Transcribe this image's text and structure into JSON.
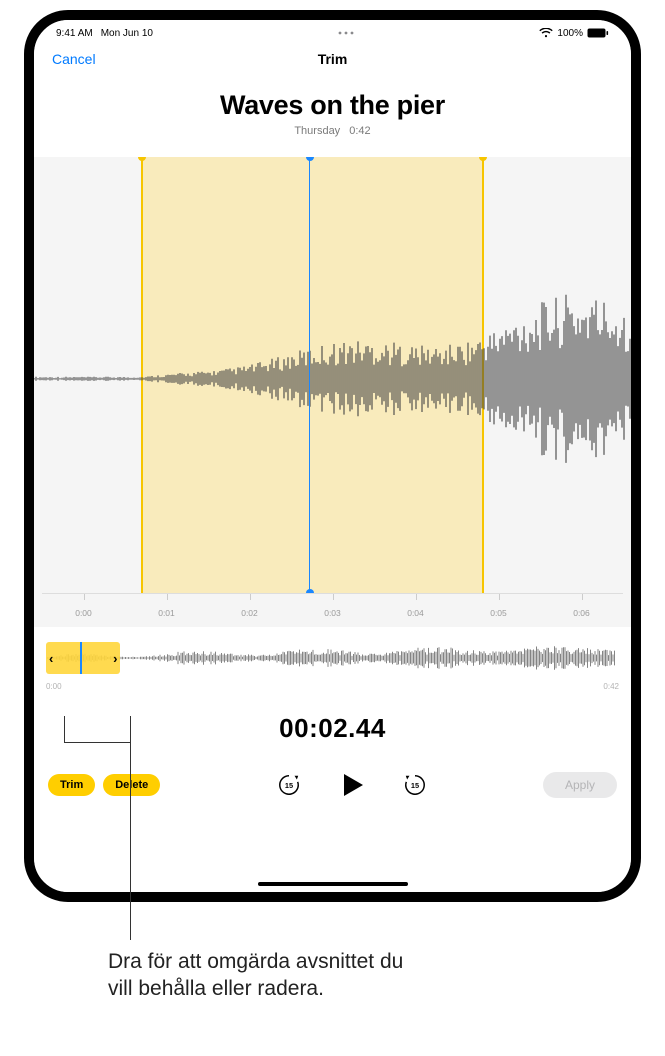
{
  "status": {
    "time": "9:41 AM",
    "date": "Mon Jun 10",
    "battery": "100%"
  },
  "nav": {
    "cancel": "Cancel",
    "title": "Trim"
  },
  "recording": {
    "title": "Waves on the pier",
    "day": "Thursday",
    "duration": "0:42"
  },
  "waveform": {
    "background": "#f5f5f5",
    "wave_color": "#444444",
    "selection_color": "rgba(255,225,120,0.45)",
    "handle_color": "#f7c500",
    "playhead_color": "#1a87ff",
    "selection_start_pct": 18,
    "selection_end_pct": 75,
    "playhead_pct": 46,
    "ticks": [
      "0:00",
      "0:01",
      "0:02",
      "0:03",
      "0:04",
      "0:05",
      "0:06"
    ]
  },
  "overview": {
    "sel_start_pct": 0,
    "sel_end_pct": 13,
    "playhead_pct": 6,
    "start_label": "0:00",
    "end_label": "0:42"
  },
  "timer": "00:02.44",
  "buttons": {
    "trim": "Trim",
    "delete": "Delete",
    "apply": "Apply"
  },
  "skip_seconds": "15",
  "colors": {
    "accent_yellow": "#ffce00",
    "link_blue": "#007aff",
    "play_blue": "#1a87ff",
    "apply_disabled_bg": "#e9e9ea",
    "apply_disabled_fg": "#b4b4b6"
  },
  "callout": "Dra för att omgärda avsnittet du vill behålla eller radera."
}
